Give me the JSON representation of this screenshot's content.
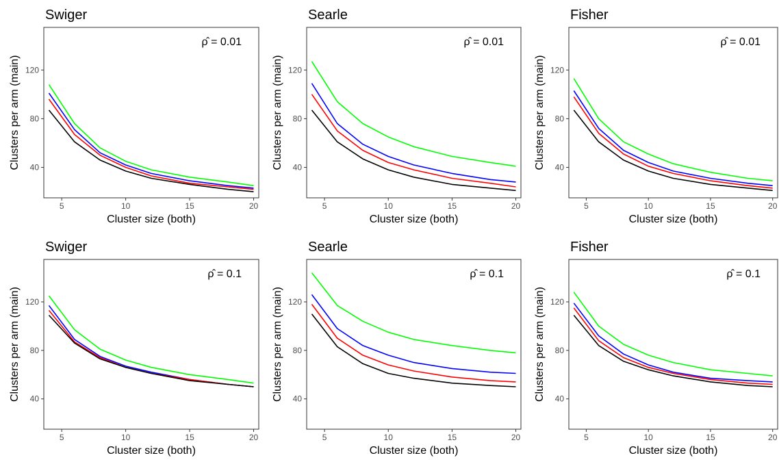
{
  "chart_data": [
    {
      "type": "line",
      "title": "Swiger",
      "xlabel": "Cluster size (both)",
      "ylabel": "Clusters per arm (main)",
      "annotation": "ρ̂ = 0.01",
      "xlim": [
        3.6,
        20.4
      ],
      "ylim": [
        15,
        155
      ],
      "xticks": [
        5,
        10,
        15,
        20
      ],
      "yticks": [
        40,
        80,
        120
      ],
      "grid": false,
      "x": [
        4,
        6,
        8,
        10,
        12,
        15,
        18,
        20
      ],
      "series": [
        {
          "color": "#00ff00",
          "values": [
            108,
            76,
            56,
            45,
            38,
            32,
            28,
            25
          ]
        },
        {
          "color": "#0000ff",
          "values": [
            101,
            71,
            52,
            42,
            35,
            29,
            25,
            23
          ]
        },
        {
          "color": "#ff0000",
          "values": [
            96,
            67,
            50,
            40,
            33,
            27,
            24,
            22
          ]
        },
        {
          "color": "#000000",
          "values": [
            87,
            61,
            46,
            37,
            31,
            26,
            22,
            20
          ]
        }
      ]
    },
    {
      "type": "line",
      "title": "Searle",
      "xlabel": "Cluster size (both)",
      "ylabel": "Clusters per arm (main)",
      "annotation": "ρ̂ = 0.01",
      "xlim": [
        3.6,
        20.4
      ],
      "ylim": [
        15,
        155
      ],
      "xticks": [
        5,
        10,
        15,
        20
      ],
      "yticks": [
        40,
        80,
        120
      ],
      "grid": false,
      "x": [
        4,
        6,
        8,
        10,
        12,
        15,
        18,
        20
      ],
      "series": [
        {
          "color": "#00ff00",
          "values": [
            127,
            94,
            76,
            65,
            57,
            49,
            44,
            41
          ]
        },
        {
          "color": "#0000ff",
          "values": [
            109,
            76,
            59,
            49,
            42,
            35,
            30,
            28
          ]
        },
        {
          "color": "#ff0000",
          "values": [
            100,
            70,
            54,
            44,
            38,
            31,
            27,
            24
          ]
        },
        {
          "color": "#000000",
          "values": [
            87,
            61,
            47,
            38,
            32,
            26,
            23,
            21
          ]
        }
      ]
    },
    {
      "type": "line",
      "title": "Fisher",
      "xlabel": "Cluster size (both)",
      "ylabel": "Clusters per arm (main)",
      "annotation": "ρ̂ = 0.01",
      "xlim": [
        3.6,
        20.4
      ],
      "ylim": [
        15,
        155
      ],
      "xticks": [
        5,
        10,
        15,
        20
      ],
      "yticks": [
        40,
        80,
        120
      ],
      "grid": false,
      "x": [
        4,
        6,
        8,
        10,
        12,
        15,
        18,
        20
      ],
      "series": [
        {
          "color": "#00ff00",
          "values": [
            113,
            80,
            61,
            51,
            43,
            36,
            31,
            29
          ]
        },
        {
          "color": "#0000ff",
          "values": [
            103,
            72,
            54,
            44,
            37,
            31,
            27,
            25
          ]
        },
        {
          "color": "#ff0000",
          "values": [
            98,
            68,
            51,
            41,
            35,
            29,
            25,
            23
          ]
        },
        {
          "color": "#000000",
          "values": [
            87,
            61,
            46,
            37,
            31,
            26,
            23,
            21
          ]
        }
      ]
    },
    {
      "type": "line",
      "title": "Swiger",
      "xlabel": "Cluster size (both)",
      "ylabel": "Clusters per arm (main)",
      "annotation": "ρ̂ = 0.1",
      "xlim": [
        3.6,
        20.4
      ],
      "ylim": [
        15,
        155
      ],
      "xticks": [
        5,
        10,
        15,
        20
      ],
      "yticks": [
        40,
        80,
        120
      ],
      "grid": false,
      "x": [
        4,
        6,
        8,
        10,
        12,
        15,
        18,
        20
      ],
      "series": [
        {
          "color": "#00ff00",
          "values": [
            125,
            97,
            81,
            72,
            66,
            60,
            56,
            53
          ]
        },
        {
          "color": "#0000ff",
          "values": [
            117,
            89,
            75,
            67,
            62,
            56,
            52,
            50
          ]
        },
        {
          "color": "#ff0000",
          "values": [
            113,
            87,
            74,
            66,
            61,
            56,
            52,
            50
          ]
        },
        {
          "color": "#000000",
          "values": [
            109,
            86,
            73,
            66,
            61,
            55,
            52,
            50
          ]
        }
      ]
    },
    {
      "type": "line",
      "title": "Searle",
      "xlabel": "Cluster size (both)",
      "ylabel": "Clusters per arm (main)",
      "annotation": "ρ̂ = 0.1",
      "xlim": [
        3.6,
        20.4
      ],
      "ylim": [
        15,
        155
      ],
      "xticks": [
        5,
        10,
        15,
        20
      ],
      "yticks": [
        40,
        80,
        120
      ],
      "grid": false,
      "x": [
        4,
        6,
        8,
        10,
        12,
        15,
        18,
        20
      ],
      "series": [
        {
          "color": "#00ff00",
          "values": [
            144,
            117,
            104,
            95,
            89,
            84,
            80,
            78
          ]
        },
        {
          "color": "#0000ff",
          "values": [
            126,
            98,
            84,
            76,
            70,
            65,
            62,
            61
          ]
        },
        {
          "color": "#ff0000",
          "values": [
            118,
            90,
            76,
            68,
            63,
            58,
            55,
            54
          ]
        },
        {
          "color": "#000000",
          "values": [
            110,
            83,
            69,
            61,
            57,
            53,
            51,
            50
          ]
        }
      ]
    },
    {
      "type": "line",
      "title": "Fisher",
      "xlabel": "Cluster size (both)",
      "ylabel": "Clusters per arm (main)",
      "annotation": "ρ̂ = 0.1",
      "xlim": [
        3.6,
        20.4
      ],
      "ylim": [
        15,
        155
      ],
      "xticks": [
        5,
        10,
        15,
        20
      ],
      "yticks": [
        40,
        80,
        120
      ],
      "grid": false,
      "x": [
        4,
        6,
        8,
        10,
        12,
        15,
        18,
        20
      ],
      "series": [
        {
          "color": "#00ff00",
          "values": [
            128,
            100,
            85,
            76,
            70,
            64,
            61,
            59
          ]
        },
        {
          "color": "#0000ff",
          "values": [
            119,
            92,
            77,
            68,
            62,
            57,
            55,
            54
          ]
        },
        {
          "color": "#ff0000",
          "values": [
            115,
            88,
            74,
            66,
            61,
            56,
            53,
            52
          ]
        },
        {
          "color": "#000000",
          "values": [
            109,
            84,
            71,
            64,
            59,
            54,
            51,
            50
          ]
        }
      ]
    }
  ]
}
